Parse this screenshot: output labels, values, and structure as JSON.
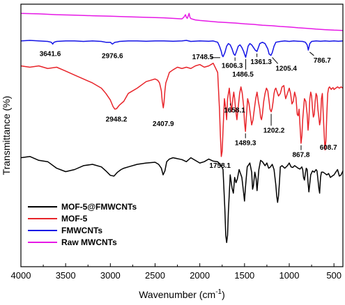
{
  "chart_data": {
    "type": "line",
    "xlabel": "Wavenumber (cm",
    "xlabel_sup": "-1",
    "xlabel_end": ")",
    "ylabel": "Transmittance (%)",
    "xlim": [
      4000,
      400
    ],
    "x_reversed": true,
    "xticks": [
      4000,
      3500,
      3000,
      2500,
      2000,
      1500,
      1000,
      500
    ],
    "ylim": [
      0,
      100
    ],
    "yticks": "none",
    "grid": false,
    "legend_position": "bottom-left",
    "series": [
      {
        "name": "MOF-5@FMWCNTs",
        "color": "#000000",
        "x": [
          4000,
          3900,
          3800,
          3700,
          3600,
          3500,
          3400,
          3300,
          3200,
          3100,
          3050,
          3000,
          2960,
          2920,
          2880,
          2850,
          2800,
          2700,
          2600,
          2500,
          2460,
          2430,
          2410,
          2390,
          2370,
          2340,
          2300,
          2200,
          2150,
          2100,
          2000,
          1950,
          1900,
          1850,
          1800,
          1760,
          1740,
          1720,
          1710,
          1700,
          1690,
          1680,
          1660,
          1640,
          1625,
          1610,
          1595,
          1580,
          1560,
          1530,
          1510,
          1500,
          1490,
          1470,
          1440,
          1420,
          1410,
          1400,
          1385,
          1370,
          1360,
          1340,
          1320,
          1300,
          1270,
          1250,
          1230,
          1210,
          1190,
          1170,
          1150,
          1140,
          1130,
          1120,
          1110,
          1100,
          1080,
          1050,
          1020,
          1000,
          980,
          960,
          940,
          920,
          900,
          880,
          860,
          850,
          840,
          830,
          820,
          810,
          800,
          790,
          780,
          760,
          740,
          720,
          700,
          690,
          680,
          670,
          660,
          650,
          640,
          620,
          600,
          580,
          560,
          540,
          520,
          500,
          480,
          460,
          440,
          420,
          400
        ],
        "y": [
          41.5,
          42.0,
          40.5,
          40.0,
          37.5,
          36.2,
          37.0,
          38.5,
          39.0,
          38.0,
          36.5,
          34.8,
          34.5,
          36.0,
          37.0,
          37.5,
          38.0,
          39.0,
          39.5,
          39.8,
          39.0,
          37.5,
          35.0,
          36.5,
          40.0,
          41.0,
          41.5,
          40.8,
          40.0,
          41.5,
          39.5,
          40.0,
          41.0,
          40.2,
          40.0,
          38.5,
          37.0,
          22.0,
          12.0,
          9.2,
          12.0,
          21.0,
          35.0,
          30.0,
          28.0,
          34.0,
          32.0,
          33.5,
          37.0,
          34.0,
          28.0,
          25.0,
          30.0,
          38.0,
          39.5,
          36.0,
          29.5,
          31.0,
          36.0,
          33.5,
          29.0,
          37.0,
          40.5,
          40.0,
          38.5,
          39.5,
          37.5,
          38.0,
          39.0,
          37.0,
          31.0,
          27.0,
          24.5,
          27.0,
          32.0,
          38.0,
          38.5,
          37.5,
          38.5,
          39.5,
          38.0,
          37.8,
          38.5,
          38.0,
          37.5,
          37.2,
          38.0,
          37.0,
          34.0,
          33.0,
          35.5,
          37.5,
          37.0,
          32.0,
          28.5,
          35.0,
          36.5,
          36.0,
          37.0,
          36.5,
          33.5,
          30.0,
          28.0,
          34.0,
          36.0,
          36.0,
          35.5,
          35.0,
          35.5,
          34.0,
          34.5,
          35.0,
          36.0,
          37.0,
          34.5,
          35.0,
          36.5
        ]
      },
      {
        "name": "MOF-5",
        "color": "#e8242a",
        "x": [
          4000,
          3900,
          3800,
          3700,
          3600,
          3500,
          3400,
          3300,
          3200,
          3100,
          3050,
          3000,
          2970,
          2950,
          2930,
          2900,
          2850,
          2800,
          2700,
          2600,
          2550,
          2500,
          2470,
          2450,
          2430,
          2420,
          2408,
          2400,
          2390,
          2380,
          2360,
          2340,
          2300,
          2250,
          2200,
          2150,
          2100,
          2050,
          2000,
          1950,
          1900,
          1850,
          1800,
          1780,
          1770,
          1760,
          1750,
          1740,
          1725,
          1710,
          1700,
          1690,
          1670,
          1658,
          1645,
          1630,
          1620,
          1610,
          1600,
          1585,
          1570,
          1555,
          1540,
          1525,
          1510,
          1500,
          1489,
          1478,
          1465,
          1450,
          1435,
          1420,
          1405,
          1390,
          1375,
          1360,
          1345,
          1330,
          1320,
          1310,
          1300,
          1285,
          1270,
          1255,
          1240,
          1225,
          1215,
          1202,
          1190,
          1180,
          1170,
          1160,
          1150,
          1140,
          1120,
          1100,
          1080,
          1060,
          1050,
          1040,
          1020,
          1000,
          985,
          970,
          955,
          940,
          925,
          910,
          900,
          890,
          880,
          868,
          858,
          850,
          840,
          830,
          815,
          800,
          790,
          780,
          770,
          760,
          750,
          740,
          730,
          720,
          710,
          700,
          690,
          680,
          670,
          660,
          650,
          640,
          630,
          620,
          609,
          600,
          590,
          580,
          570,
          560,
          550,
          540,
          530,
          520,
          510,
          500,
          480,
          460,
          440,
          420,
          400
        ],
        "y": [
          76.5,
          76.0,
          76.5,
          75.5,
          76.0,
          74.5,
          73.0,
          71.5,
          70.0,
          68.0,
          66.0,
          63.5,
          61.0,
          60.0,
          60.2,
          61.5,
          63.0,
          66.0,
          68.0,
          70.5,
          71.0,
          71.5,
          71.0,
          70.0,
          67.0,
          63.0,
          60.5,
          62.5,
          67.0,
          70.0,
          72.0,
          74.0,
          75.0,
          76.0,
          75.5,
          76.0,
          75.5,
          76.5,
          77.0,
          76.0,
          76.5,
          77.5,
          74.0,
          60.0,
          50.0,
          42.0,
          44.0,
          52.0,
          64.0,
          60.0,
          56.0,
          64.0,
          68.0,
          63.0,
          59.0,
          64.0,
          66.5,
          64.0,
          60.0,
          56.0,
          61.0,
          66.0,
          68.5,
          66.0,
          61.0,
          55.0,
          51.5,
          58.0,
          64.0,
          62.0,
          58.0,
          54.0,
          56.0,
          60.0,
          64.0,
          66.5,
          63.0,
          60.0,
          57.0,
          56.0,
          58.0,
          63.0,
          66.0,
          68.0,
          67.0,
          63.0,
          60.0,
          59.0,
          60.5,
          63.0,
          66.0,
          67.5,
          68.0,
          67.0,
          65.0,
          66.0,
          68.5,
          69.0,
          66.0,
          64.0,
          66.0,
          68.0,
          66.0,
          62.0,
          63.0,
          66.5,
          64.5,
          58.0,
          57.5,
          60.0,
          54.0,
          47.0,
          50.0,
          56.0,
          60.0,
          64.0,
          63.0,
          58.0,
          52.0,
          56.0,
          64.0,
          66.5,
          65.0,
          60.0,
          57.0,
          58.0,
          63.0,
          66.0,
          65.0,
          60.0,
          57.0,
          54.0,
          56.0,
          64.0,
          66.0,
          58.0,
          50.0,
          44.5,
          48.0,
          58.0,
          66.0,
          68.0,
          68.5,
          68.0,
          67.5,
          68.0,
          68.2,
          67.5,
          68.0,
          68.5,
          68.0,
          68.5,
          68.0
        ]
      },
      {
        "name": "FMWCNTs",
        "color": "#1414e6",
        "x": [
          4000,
          3900,
          3800,
          3700,
          3660,
          3645,
          3630,
          3600,
          3500,
          3400,
          3300,
          3200,
          3100,
          3050,
          3000,
          2977,
          2950,
          2920,
          2900,
          2800,
          2700,
          2600,
          2500,
          2400,
          2300,
          2200,
          2150,
          2100,
          2000,
          1900,
          1850,
          1800,
          1780,
          1760,
          1750,
          1740,
          1720,
          1700,
          1680,
          1660,
          1640,
          1620,
          1606,
          1590,
          1570,
          1550,
          1530,
          1510,
          1500,
          1487,
          1475,
          1460,
          1440,
          1420,
          1400,
          1380,
          1361,
          1345,
          1330,
          1300,
          1270,
          1240,
          1225,
          1205,
          1190,
          1170,
          1150,
          1100,
          1050,
          1000,
          950,
          900,
          850,
          820,
          800,
          790,
          787,
          780,
          770,
          750,
          700,
          650,
          600,
          550,
          500,
          450,
          400
        ],
        "y": [
          86.0,
          86.2,
          86.0,
          85.8,
          85.5,
          84.8,
          85.5,
          85.8,
          86.0,
          86.0,
          85.8,
          86.0,
          85.8,
          85.5,
          85.5,
          84.8,
          85.5,
          85.6,
          85.8,
          86.0,
          86.0,
          85.9,
          86.0,
          86.0,
          85.9,
          86.0,
          86.2,
          85.8,
          86.0,
          85.9,
          86.0,
          85.5,
          84.0,
          82.0,
          80.5,
          80.0,
          81.5,
          84.0,
          85.0,
          84.5,
          83.0,
          81.0,
          80.5,
          82.0,
          84.0,
          84.5,
          83.5,
          82.0,
          81.0,
          79.8,
          81.5,
          84.0,
          85.0,
          84.5,
          83.5,
          82.5,
          82.0,
          83.5,
          85.0,
          85.5,
          85.0,
          83.0,
          81.0,
          80.5,
          81.5,
          84.0,
          85.5,
          85.8,
          86.0,
          85.8,
          86.0,
          85.9,
          85.8,
          85.5,
          84.5,
          83.0,
          82.5,
          83.5,
          85.0,
          85.8,
          86.0,
          85.9,
          86.0,
          85.9,
          86.0,
          85.9,
          86.0
        ]
      },
      {
        "name": "Raw MWCNTs",
        "color": "#e619e6",
        "x": [
          4000,
          3800,
          3600,
          3400,
          3200,
          3000,
          2800,
          2600,
          2400,
          2300,
          2250,
          2200,
          2180,
          2160,
          2150,
          2140,
          2130,
          2120,
          2110,
          2100,
          2080,
          2050,
          2000,
          1900,
          1800,
          1700,
          1600,
          1500,
          1400,
          1300,
          1200,
          1100,
          1000,
          900,
          800,
          700,
          600,
          500,
          400
        ],
        "y": [
          96.5,
          96.3,
          96.0,
          95.8,
          95.6,
          95.4,
          95.2,
          95.0,
          94.8,
          94.6,
          94.5,
          94.4,
          95.0,
          96.0,
          95.0,
          94.6,
          95.5,
          96.5,
          95.0,
          94.5,
          94.3,
          94.0,
          93.8,
          93.5,
          93.2,
          93.0,
          92.8,
          92.5,
          92.3,
          92.0,
          91.8,
          91.5,
          91.3,
          91.0,
          90.8,
          90.5,
          90.3,
          90.1,
          90.0
        ]
      }
    ],
    "annotations": [
      {
        "text": "3641.6",
        "x": 3641.6,
        "series": "FMWCNTs"
      },
      {
        "text": "2976.6",
        "x": 2976.6,
        "series": "FMWCNTs"
      },
      {
        "text": "1748.5",
        "x": 1748.5,
        "series": "FMWCNTs"
      },
      {
        "text": "1606.3",
        "x": 1606.3,
        "series": "FMWCNTs"
      },
      {
        "text": "1486.5",
        "x": 1486.5,
        "series": "FMWCNTs"
      },
      {
        "text": "1361.3",
        "x": 1361.3,
        "series": "FMWCNTs"
      },
      {
        "text": "1205.4",
        "x": 1205.4,
        "series": "FMWCNTs"
      },
      {
        "text": "786.7",
        "x": 786.7,
        "series": "FMWCNTs"
      },
      {
        "text": "2948.2",
        "x": 2948.2,
        "series": "MOF-5"
      },
      {
        "text": "2407.9",
        "x": 2407.9,
        "series": "MOF-5"
      },
      {
        "text": "1658.1",
        "x": 1658.1,
        "series": "MOF-5"
      },
      {
        "text": "1758.1",
        "x": 1758.1,
        "series": "MOF-5"
      },
      {
        "text": "1489.3",
        "x": 1489.3,
        "series": "MOF-5"
      },
      {
        "text": "1202.2",
        "x": 1202.2,
        "series": "MOF-5"
      },
      {
        "text": "867.8",
        "x": 867.8,
        "series": "MOF-5"
      },
      {
        "text": "608.7",
        "x": 608.7,
        "series": "MOF-5"
      }
    ]
  }
}
